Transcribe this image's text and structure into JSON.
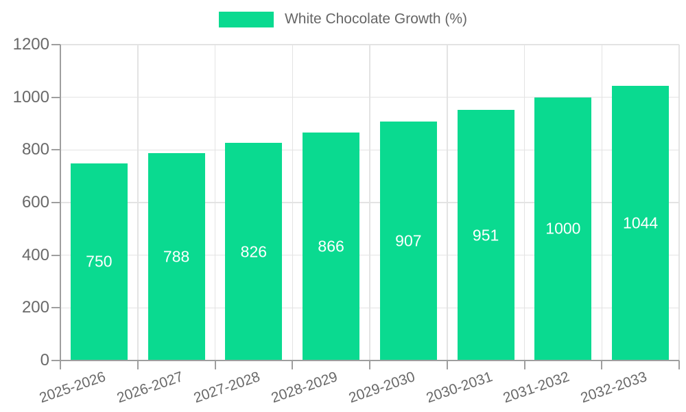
{
  "chart_data": {
    "type": "bar",
    "title": "",
    "legend_label": "White Chocolate Growth (%)",
    "legend_position": "top",
    "categories": [
      "2025-2026",
      "2026-2027",
      "2027-2028",
      "2028-2029",
      "2029-2030",
      "2030-2031",
      "2031-2032",
      "2032-2033"
    ],
    "values": [
      750,
      788,
      826,
      866,
      907,
      951,
      1000,
      1044
    ],
    "xlabel": "",
    "ylabel": "",
    "ylim": [
      0,
      1200
    ],
    "yticks": [
      0,
      200,
      400,
      600,
      800,
      1000,
      1200
    ],
    "grid": true,
    "bar_color": "#0ada90",
    "value_label_color": "#ffffff",
    "axis_text_color": "#696969",
    "grid_color": "#e3e3e3",
    "axis_line_color": "#9e9e9e",
    "background_color": "#ffffff"
  }
}
